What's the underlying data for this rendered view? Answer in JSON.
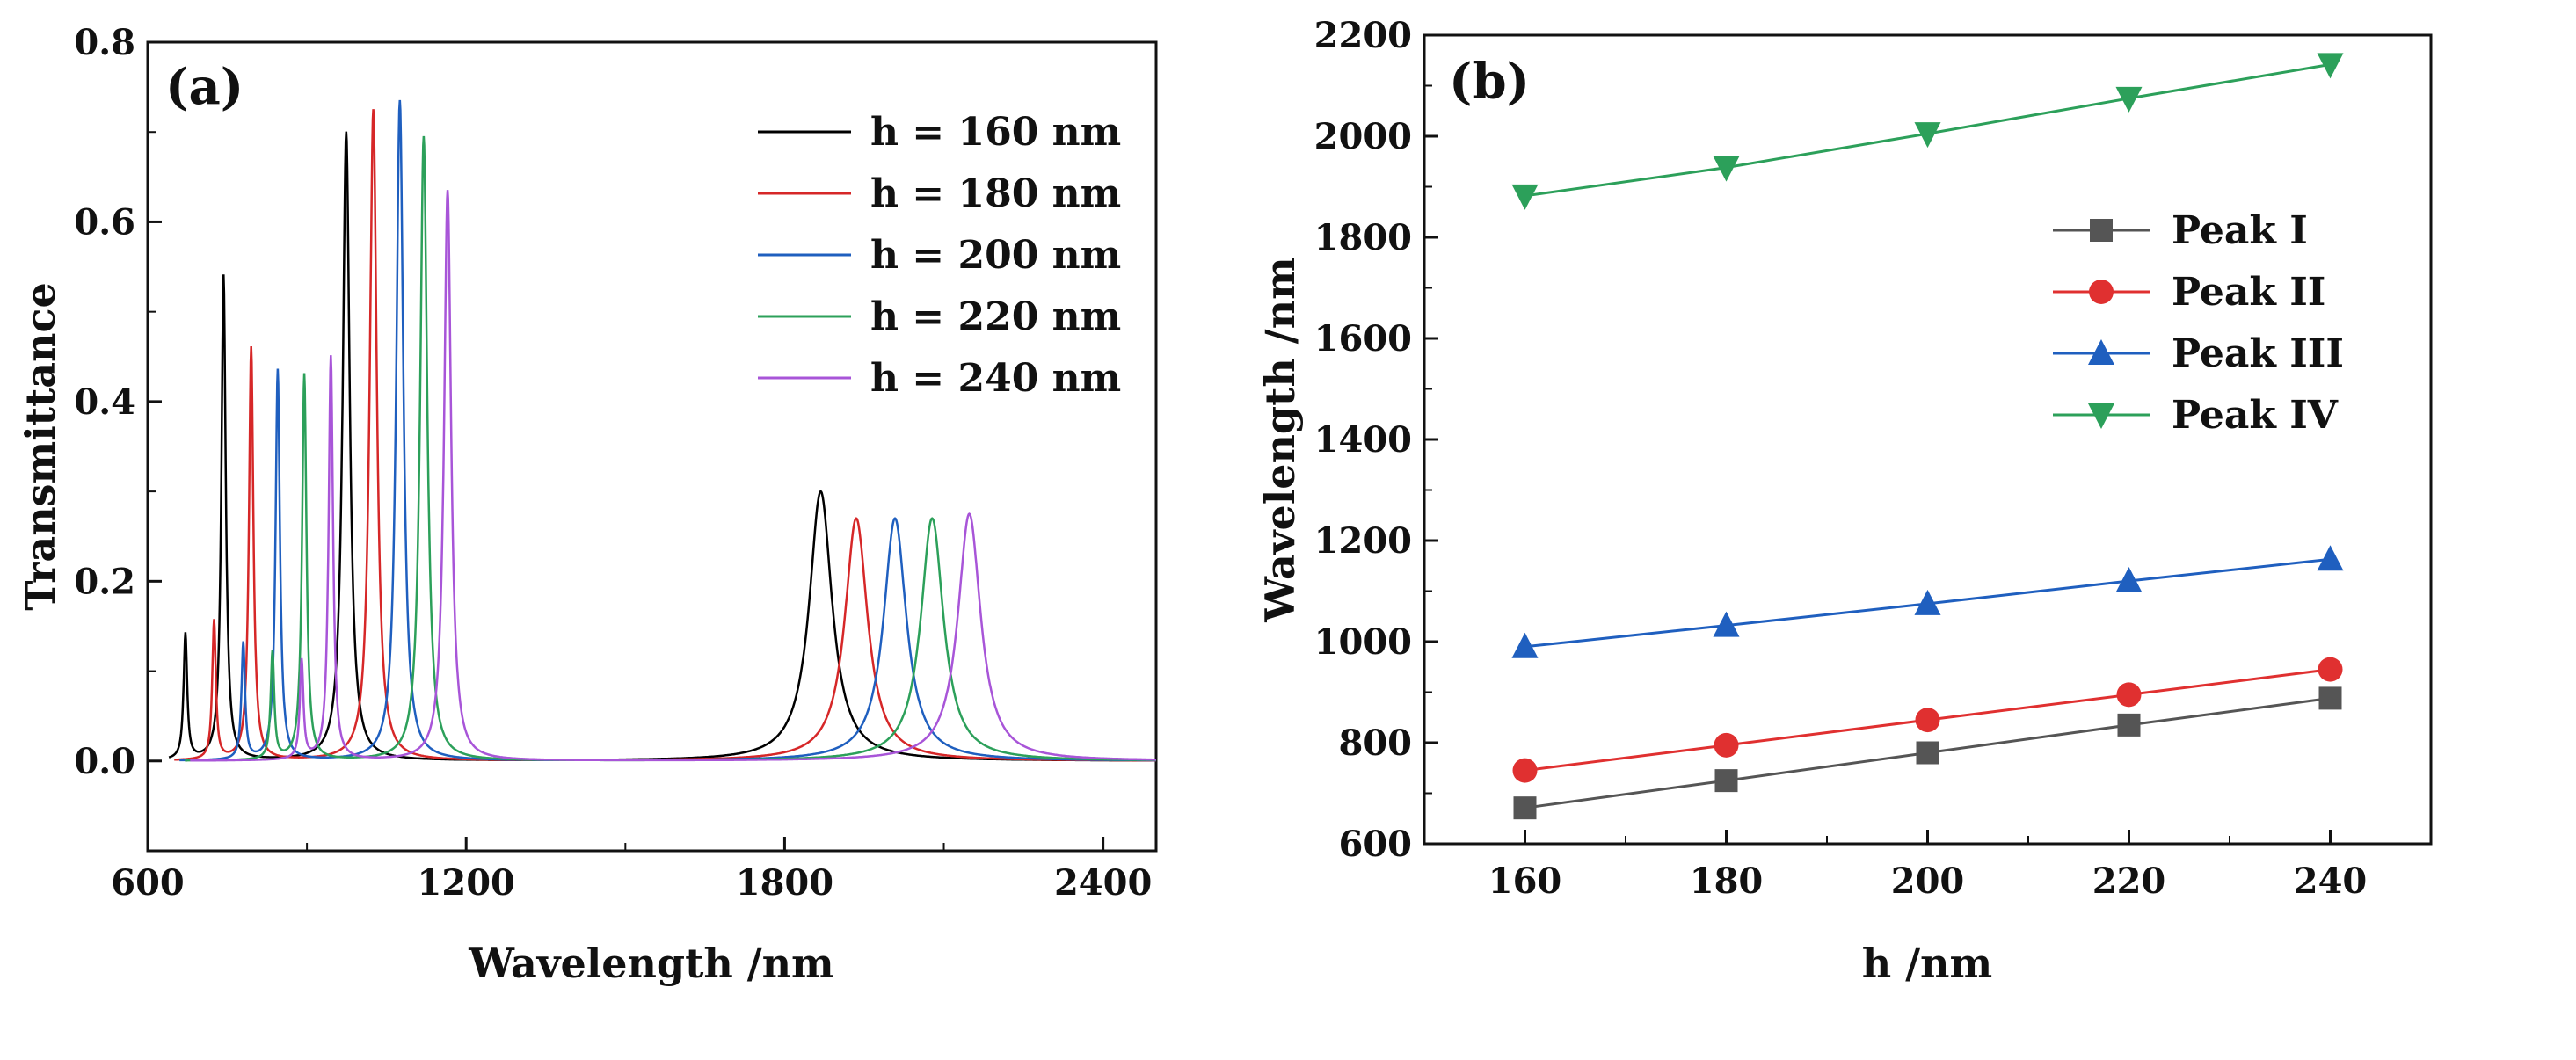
{
  "chart_data": [
    {
      "panel_label": "(a)",
      "type": "line",
      "xlabel": "Wavelength /nm",
      "ylabel": "Transmittance",
      "xlim": [
        600,
        2500
      ],
      "ylim": [
        -0.1,
        0.8
      ],
      "xticks": [
        "600",
        "1200",
        "1800",
        "2400"
      ],
      "yticks": [
        "0.0",
        "0.2",
        "0.4",
        "0.6",
        "0.8"
      ],
      "grid": false,
      "legend_position": "top-right",
      "series": [
        {
          "name": "h = 160 nm",
          "color": "#000000",
          "peaks": [
            {
              "x": 671,
              "y": 0.14,
              "w": 4
            },
            {
              "x": 743,
              "y": 0.54,
              "w": 5
            },
            {
              "x": 974,
              "y": 0.7,
              "w": 8
            },
            {
              "x": 1868,
              "y": 0.3,
              "w": 26
            }
          ]
        },
        {
          "name": "h = 180 nm",
          "color": "#d62728",
          "peaks": [
            {
              "x": 725,
              "y": 0.155,
              "w": 4
            },
            {
              "x": 795,
              "y": 0.46,
              "w": 5
            },
            {
              "x": 1025,
              "y": 0.725,
              "w": 8
            },
            {
              "x": 1935,
              "y": 0.27,
              "w": 26
            }
          ]
        },
        {
          "name": "h = 200 nm",
          "color": "#1f5fbf",
          "peaks": [
            {
              "x": 780,
              "y": 0.13,
              "w": 4
            },
            {
              "x": 845,
              "y": 0.435,
              "w": 5
            },
            {
              "x": 1075,
              "y": 0.735,
              "w": 8
            },
            {
              "x": 2008,
              "y": 0.27,
              "w": 26
            }
          ]
        },
        {
          "name": "h = 220 nm",
          "color": "#2ca05a",
          "peaks": [
            {
              "x": 835,
              "y": 0.12,
              "w": 4
            },
            {
              "x": 895,
              "y": 0.43,
              "w": 5
            },
            {
              "x": 1120,
              "y": 0.695,
              "w": 8
            },
            {
              "x": 2078,
              "y": 0.27,
              "w": 26
            }
          ]
        },
        {
          "name": "h = 240 nm",
          "color": "#a855d8",
          "peaks": [
            {
              "x": 890,
              "y": 0.11,
              "w": 4
            },
            {
              "x": 945,
              "y": 0.45,
              "w": 5
            },
            {
              "x": 1165,
              "y": 0.635,
              "w": 8
            },
            {
              "x": 2148,
              "y": 0.275,
              "w": 26
            }
          ]
        }
      ]
    },
    {
      "panel_label": "(b)",
      "type": "line",
      "xlabel": "h /nm",
      "ylabel": "Wavelength /nm",
      "xlim": [
        150,
        250
      ],
      "ylim": [
        600,
        2200
      ],
      "xticks": [
        "160",
        "180",
        "200",
        "220",
        "240"
      ],
      "yticks": [
        "600",
        "800",
        "1000",
        "1200",
        "1400",
        "1600",
        "1800",
        "2000",
        "2200"
      ],
      "grid": false,
      "legend_position": "middle-right",
      "x": [
        160,
        180,
        200,
        220,
        240
      ],
      "series": [
        {
          "name": "Peak I",
          "color": "#555555",
          "marker": "square",
          "values": [
            671,
            725,
            780,
            835,
            888
          ]
        },
        {
          "name": "Peak II",
          "color": "#e03030",
          "marker": "circle",
          "values": [
            745,
            795,
            845,
            895,
            945
          ]
        },
        {
          "name": "Peak III",
          "color": "#1f5fbf",
          "marker": "triangle-up",
          "values": [
            990,
            1032,
            1075,
            1120,
            1163
          ]
        },
        {
          "name": "Peak IV",
          "color": "#2ca05a",
          "marker": "triangle-down",
          "values": [
            1882,
            1938,
            2005,
            2075,
            2142
          ]
        }
      ]
    }
  ]
}
